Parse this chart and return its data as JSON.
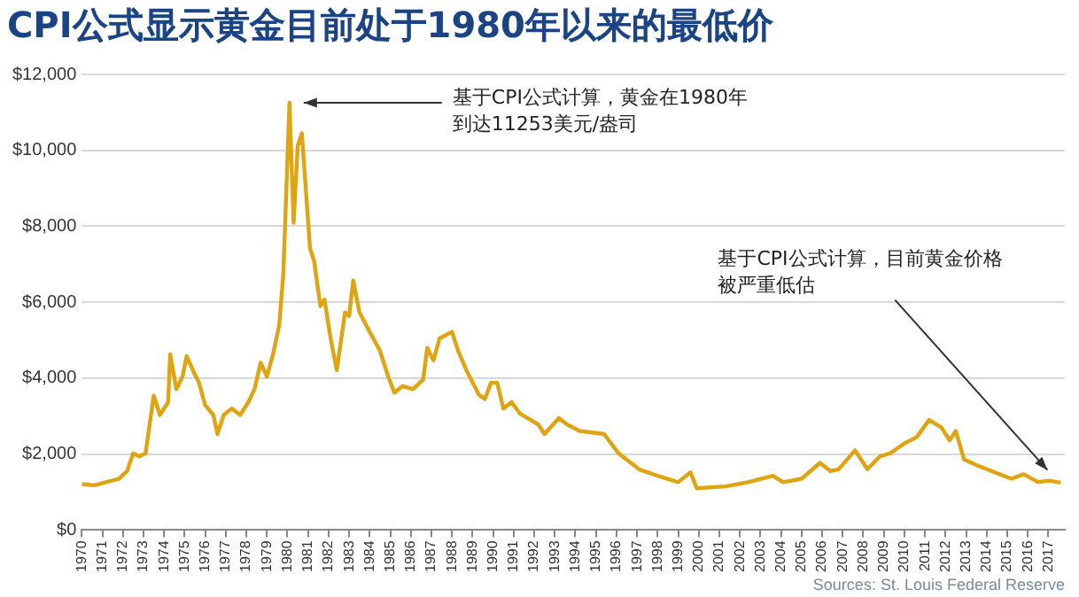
{
  "chart_data": {
    "type": "line",
    "title": "CPI公式显示黄金目前处于1980年以来的最低价",
    "x": [
      1970,
      1970.6,
      1971.8,
      1972.2,
      1972.5,
      1972.8,
      1973.1,
      1973.5,
      1973.8,
      1974.2,
      1974.3,
      1974.6,
      1974.9,
      1975.1,
      1975.4,
      1975.7,
      1976,
      1976.4,
      1976.6,
      1976.9,
      1977.3,
      1977.7,
      1978.1,
      1978.4,
      1978.7,
      1979,
      1979.3,
      1979.6,
      1979.8,
      1980.1,
      1980.3,
      1980.5,
      1980.7,
      1981.1,
      1981.3,
      1981.6,
      1981.8,
      1982.1,
      1982.4,
      1982.8,
      1983,
      1983.2,
      1983.5,
      1984,
      1984.5,
      1984.9,
      1985.2,
      1985.6,
      1986.1,
      1986.6,
      1986.8,
      1987.1,
      1987.4,
      1988,
      1988.3,
      1988.7,
      1989.3,
      1989.6,
      1989.9,
      1990.2,
      1990.5,
      1990.9,
      1991.3,
      1992.2,
      1992.5,
      1993.2,
      1993.6,
      1994.2,
      1995.4,
      1996.1,
      1997.1,
      1998,
      1999,
      1999.6,
      1999.9,
      2001.3,
      2002.4,
      2003.6,
      2004.1,
      2005,
      2005.9,
      2006.4,
      2006.8,
      2007.6,
      2008.2,
      2008.8,
      2009.3,
      2010,
      2010.6,
      2011.2,
      2011.8,
      2012.2,
      2012.5,
      2012.9,
      2013.6,
      2014.4,
      2015.2,
      2015.8,
      2016.5,
      2017,
      2017.6
    ],
    "values": [
      1210,
      1180,
      1350,
      1550,
      2020,
      1940,
      2020,
      3540,
      3030,
      3370,
      4630,
      3710,
      4040,
      4580,
      4210,
      3880,
      3290,
      3030,
      2530,
      3030,
      3200,
      3030,
      3370,
      3710,
      4410,
      4040,
      4630,
      5390,
      6740,
      11253,
      8090,
      10110,
      10450,
      7410,
      7080,
      5900,
      6070,
      5050,
      4210,
      5730,
      5640,
      6570,
      5730,
      5220,
      4720,
      4040,
      3620,
      3790,
      3710,
      3960,
      4800,
      4470,
      5050,
      5220,
      4720,
      4210,
      3570,
      3450,
      3880,
      3880,
      3200,
      3370,
      3070,
      2780,
      2530,
      2950,
      2780,
      2610,
      2530,
      2020,
      1600,
      1430,
      1260,
      1520,
      1100,
      1150,
      1260,
      1430,
      1260,
      1350,
      1770,
      1550,
      1600,
      2100,
      1600,
      1940,
      2020,
      2280,
      2450,
      2900,
      2700,
      2360,
      2610,
      1860,
      1690,
      1520,
      1350,
      1470,
      1260,
      1300,
      1250
    ],
    "color": "#e0a410",
    "xlim": [
      1970,
      2017.8
    ],
    "xticks": [
      1970,
      1971,
      1972,
      1973,
      1974,
      1975,
      1976,
      1977,
      1978,
      1979,
      1980,
      1981,
      1982,
      1983,
      1984,
      1985,
      1986,
      1987,
      1988,
      1989,
      1990,
      1991,
      1992,
      1993,
      1994,
      1995,
      1996,
      1997,
      1998,
      1999,
      2000,
      2001,
      2002,
      2003,
      2004,
      2005,
      2006,
      2007,
      2008,
      2009,
      2010,
      2011,
      2012,
      2013,
      2014,
      2015,
      2016,
      2017
    ],
    "ylim": [
      0,
      12000
    ],
    "yticks": [
      {
        "value": 0,
        "label": "$0"
      },
      {
        "value": 2000,
        "label": "$2,000"
      },
      {
        "value": 4000,
        "label": "$4,000"
      },
      {
        "value": 6000,
        "label": "$6,000"
      },
      {
        "value": 8000,
        "label": "$8,000"
      },
      {
        "value": 10000,
        "label": "$10,000"
      },
      {
        "value": 12000,
        "label": "$12,000"
      }
    ],
    "grid": "y",
    "marker": "none",
    "line_style": "solid",
    "legend": false,
    "annotations": [
      {
        "text": "基于CPI公式计算，黄金在1980年到达11253美元/盎司",
        "x": 1980.1,
        "y": 11253
      },
      {
        "text": "基于CPI公式计算，目前黄金价格被严重低估",
        "x": 2017.3,
        "y": 1300
      },
      "Sources: St. Louis Federal Reserve"
    ]
  }
}
